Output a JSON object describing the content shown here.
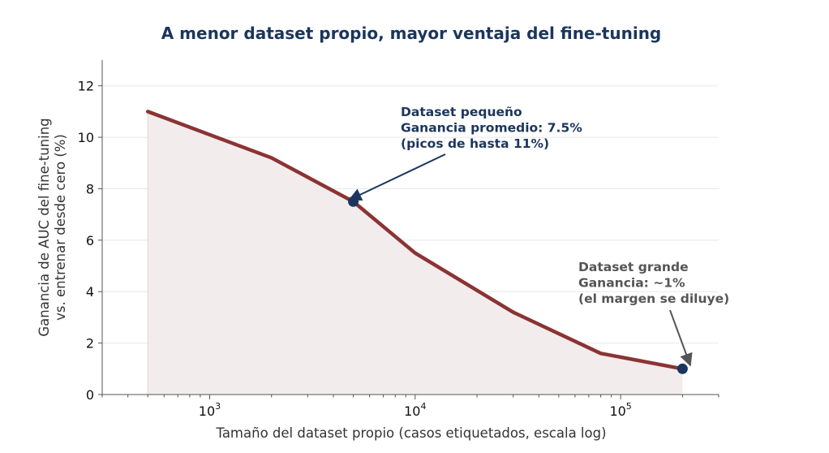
{
  "chart_data": {
    "type": "area",
    "title": "A menor dataset propio, mayor ventaja del fine-tuning",
    "xlabel": "Tamaño del dataset propio (casos etiquetados, escala log)",
    "ylabel": [
      "Ganancia de AUC del fine-tuning",
      "vs. entrenar desde cero (%)"
    ],
    "x_scale": "log",
    "xlim": [
      300,
      300000
    ],
    "ylim": [
      0,
      13
    ],
    "x": [
      500,
      2000,
      5000,
      10000,
      30000,
      80000,
      200000
    ],
    "y": [
      11,
      9.2,
      7.5,
      5.5,
      3.2,
      1.6,
      1.0
    ],
    "x_ticks": [
      {
        "value": 1000,
        "base": "10",
        "exp": "3"
      },
      {
        "value": 10000,
        "base": "10",
        "exp": "4"
      },
      {
        "value": 100000,
        "base": "10",
        "exp": "5"
      }
    ],
    "y_ticks": [
      0,
      2,
      4,
      6,
      8,
      10,
      12
    ],
    "grid": "horizontal",
    "colors": {
      "line": "#8b3333",
      "fill": "#f3eced",
      "marker": "#1b365d",
      "title": "#1b365d",
      "annotation_small": "#1b365d",
      "annotation_large": "#555555"
    },
    "highlight_points": [
      {
        "x": 5000,
        "y": 7.5
      },
      {
        "x": 200000,
        "y": 1.0
      }
    ],
    "annotations": [
      {
        "lines": [
          "Dataset pequeño",
          "Ganancia promedio: 7.5%",
          "(picos de hasta 11%)"
        ],
        "target": {
          "x": 5000,
          "y": 7.5
        },
        "color": "#1b365d"
      },
      {
        "lines": [
          "Dataset grande",
          "Ganancia: ~1%",
          "(el margen se diluye)"
        ],
        "target": {
          "x": 200000,
          "y": 1.0
        },
        "color": "#555555"
      }
    ]
  }
}
